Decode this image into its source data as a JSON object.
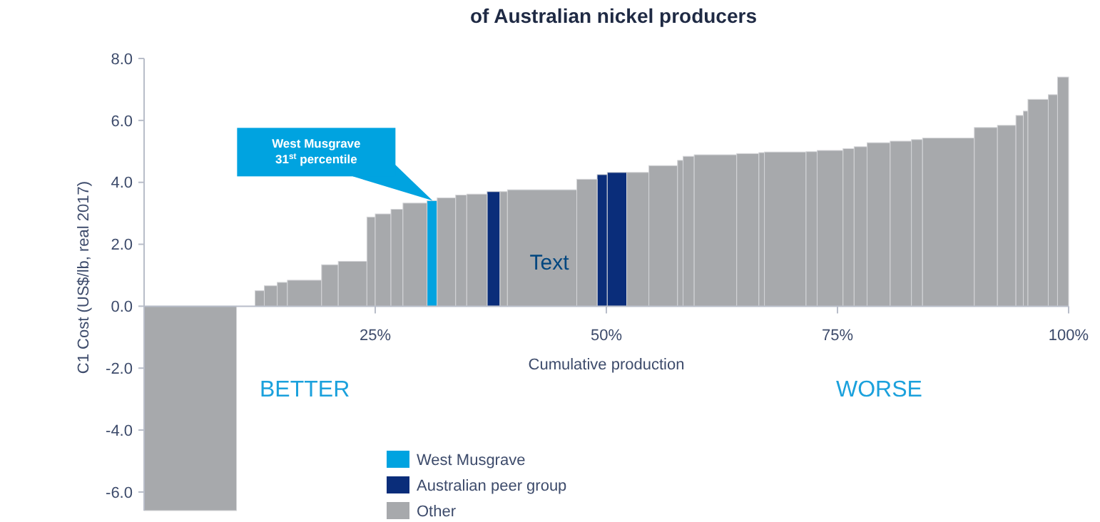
{
  "chart_data": {
    "type": "histogram",
    "title": "of Australian nickel producers",
    "xlabel": "Cumulative production",
    "ylabel": "C1 Cost (US$/lb, real 2017)",
    "bins": [
      0,
      10,
      12,
      13,
      14.4,
      15.5,
      19.2,
      21,
      24.1,
      25,
      26.7,
      28,
      30.6,
      31.7,
      33.7,
      34.9,
      37.1,
      38.5,
      39.3,
      46.8,
      49,
      50.1,
      52.2,
      54.6,
      57.7,
      58.3,
      59.5,
      64.1,
      66.5,
      67.1,
      71.6,
      72.8,
      75.6,
      76.8,
      78.2,
      80.7,
      83,
      84.2,
      89.8,
      92.3,
      94.3,
      95.1,
      95.6,
      97.8,
      98.8,
      100
    ],
    "series": [
      {
        "name": "West Musgrave",
        "color": "#00a3e0",
        "values": [
          null,
          null,
          null,
          null,
          null,
          null,
          null,
          null,
          null,
          null,
          null,
          null,
          3.41,
          null,
          null,
          null,
          null,
          null,
          null,
          null,
          null,
          null,
          null,
          null,
          null,
          null,
          null,
          null,
          null,
          null,
          null,
          null,
          null,
          null,
          null,
          null,
          null,
          null,
          null,
          null,
          null,
          null,
          null,
          null,
          null
        ]
      },
      {
        "name": "Australian peer group",
        "color": "#0a2d7a",
        "values": [
          null,
          null,
          null,
          null,
          null,
          null,
          null,
          null,
          null,
          null,
          null,
          null,
          null,
          null,
          null,
          null,
          3.7,
          null,
          null,
          null,
          4.25,
          4.32,
          null,
          null,
          null,
          null,
          null,
          null,
          null,
          null,
          null,
          null,
          null,
          null,
          null,
          null,
          null,
          null,
          null,
          null,
          null,
          null,
          null,
          null,
          null
        ]
      },
      {
        "name": "Other",
        "color": "#a7a9ac",
        "values": [
          -6.6,
          null,
          0.5,
          0.66,
          0.77,
          0.84,
          1.34,
          1.45,
          2.88,
          2.98,
          3.13,
          3.33,
          null,
          3.5,
          3.59,
          3.62,
          null,
          3.7,
          3.76,
          4.1,
          null,
          null,
          4.32,
          4.54,
          4.71,
          4.84,
          4.89,
          4.93,
          4.96,
          4.98,
          4.99,
          5.03,
          5.09,
          5.15,
          5.28,
          5.33,
          5.38,
          5.43,
          5.77,
          5.84,
          6.16,
          6.3,
          6.68,
          6.83,
          7.4
        ]
      }
    ],
    "xlim": [
      0,
      100
    ],
    "xticks": [
      {
        "value": 25,
        "label": "25%"
      },
      {
        "value": 50,
        "label": "50%"
      },
      {
        "value": 75,
        "label": "75%"
      },
      {
        "value": 100,
        "label": "100%"
      }
    ],
    "ylim": [
      -6.6,
      8
    ],
    "yticks": [
      {
        "value": -6,
        "label": "-6.0"
      },
      {
        "value": -4,
        "label": "-4.0"
      },
      {
        "value": -2,
        "label": "-2.0"
      },
      {
        "value": 0,
        "label": "0.0"
      },
      {
        "value": 2,
        "label": "2.0"
      },
      {
        "value": 4,
        "label": "4.0"
      },
      {
        "value": 6,
        "label": "6.0"
      },
      {
        "value": 8,
        "label": "8.0"
      }
    ],
    "grid": false,
    "legend": "bottom",
    "annotations": [
      {
        "text": "West Musgrave\n31$^{st}$ percentile",
        "x": 31.2,
        "y": 3.41
      },
      "Text",
      "BETTER",
      "WORSE"
    ]
  }
}
